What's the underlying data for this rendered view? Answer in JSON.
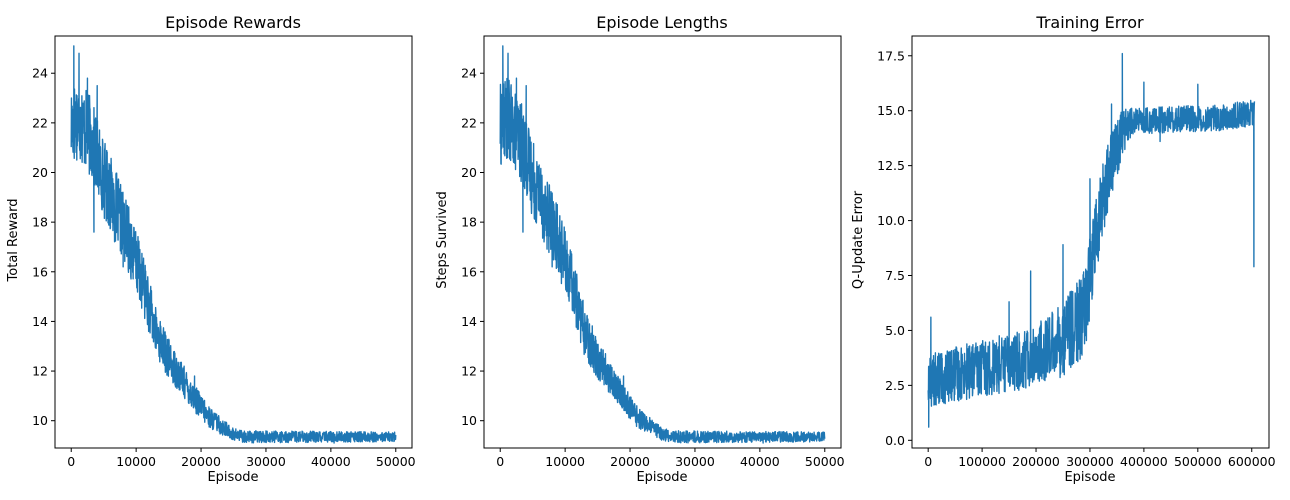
{
  "chart_data": [
    {
      "type": "line",
      "title": "Episode Rewards",
      "xlabel": "Episode",
      "ylabel": "Total Reward",
      "xlim": [
        -2500,
        52500
      ],
      "ylim": [
        8.9,
        25.5
      ],
      "xticks": [
        0,
        10000,
        20000,
        30000,
        40000,
        50000
      ],
      "yticks": [
        10,
        12,
        14,
        16,
        18,
        20,
        22,
        24
      ],
      "color": "#1f77b4",
      "grid": false,
      "trend": [
        [
          0,
          21.9
        ],
        [
          1000,
          22.2
        ],
        [
          3000,
          21.4
        ],
        [
          5000,
          19.8
        ],
        [
          7000,
          18.5
        ],
        [
          9000,
          17.2
        ],
        [
          11000,
          15.6
        ],
        [
          13000,
          13.6
        ],
        [
          15000,
          12.5
        ],
        [
          17000,
          11.7
        ],
        [
          19000,
          10.9
        ],
        [
          21000,
          10.2
        ],
        [
          23000,
          9.8
        ],
        [
          25000,
          9.45
        ],
        [
          27000,
          9.35
        ],
        [
          30000,
          9.35
        ],
        [
          40000,
          9.35
        ],
        [
          50000,
          9.35
        ]
      ],
      "noise": [
        [
          0,
          1.7
        ],
        [
          5000,
          1.6
        ],
        [
          10000,
          1.3
        ],
        [
          15000,
          0.8
        ],
        [
          20000,
          0.5
        ],
        [
          25000,
          0.25
        ],
        [
          50000,
          0.2
        ]
      ],
      "highlights": [
        [
          400,
          25.1
        ],
        [
          1200,
          24.8
        ],
        [
          2500,
          23.8
        ],
        [
          4000,
          23.5
        ],
        [
          6000,
          20.3
        ],
        [
          3500,
          17.6
        ],
        [
          8000,
          16.2
        ],
        [
          14000,
          13.2
        ],
        [
          19000,
          11.8
        ],
        [
          40500,
          9.1
        ]
      ]
    },
    {
      "type": "line",
      "title": "Episode Lengths",
      "xlabel": "Episode",
      "ylabel": "Steps Survived",
      "xlim": [
        -2500,
        52500
      ],
      "ylim": [
        8.9,
        25.5
      ],
      "xticks": [
        0,
        10000,
        20000,
        30000,
        40000,
        50000
      ],
      "yticks": [
        10,
        12,
        14,
        16,
        18,
        20,
        22,
        24
      ],
      "color": "#1f77b4",
      "grid": false,
      "trend": [
        [
          0,
          21.9
        ],
        [
          1000,
          22.2
        ],
        [
          3000,
          21.4
        ],
        [
          5000,
          19.8
        ],
        [
          7000,
          18.5
        ],
        [
          9000,
          17.2
        ],
        [
          11000,
          15.6
        ],
        [
          13000,
          13.6
        ],
        [
          15000,
          12.5
        ],
        [
          17000,
          11.7
        ],
        [
          19000,
          10.9
        ],
        [
          21000,
          10.2
        ],
        [
          23000,
          9.8
        ],
        [
          25000,
          9.45
        ],
        [
          27000,
          9.35
        ],
        [
          30000,
          9.35
        ],
        [
          40000,
          9.35
        ],
        [
          50000,
          9.35
        ]
      ],
      "noise": [
        [
          0,
          1.7
        ],
        [
          5000,
          1.6
        ],
        [
          10000,
          1.3
        ],
        [
          15000,
          0.8
        ],
        [
          20000,
          0.5
        ],
        [
          25000,
          0.25
        ],
        [
          50000,
          0.2
        ]
      ],
      "highlights": [
        [
          400,
          25.1
        ],
        [
          1200,
          24.8
        ],
        [
          2500,
          23.8
        ],
        [
          4000,
          23.5
        ],
        [
          6000,
          20.3
        ],
        [
          3500,
          17.6
        ],
        [
          8000,
          16.2
        ],
        [
          14000,
          13.2
        ],
        [
          19000,
          11.8
        ],
        [
          40500,
          9.1
        ]
      ]
    },
    {
      "type": "line",
      "title": "Training Error",
      "xlabel": "Episode",
      "ylabel": "Q-Update Error",
      "xlim": [
        -30000,
        632000
      ],
      "ylim": [
        -0.35,
        18.4
      ],
      "xticks": [
        0,
        100000,
        200000,
        300000,
        400000,
        500000,
        600000
      ],
      "yticks": [
        0.0,
        2.5,
        5.0,
        7.5,
        10.0,
        12.5,
        15.0,
        17.5
      ],
      "color": "#1f77b4",
      "grid": false,
      "trend": [
        [
          0,
          2.7
        ],
        [
          50000,
          3.0
        ],
        [
          100000,
          3.3
        ],
        [
          150000,
          3.5
        ],
        [
          200000,
          3.9
        ],
        [
          250000,
          4.6
        ],
        [
          290000,
          5.8
        ],
        [
          300000,
          7.5
        ],
        [
          320000,
          10.5
        ],
        [
          340000,
          12.6
        ],
        [
          360000,
          14.0
        ],
        [
          380000,
          14.5
        ],
        [
          450000,
          14.6
        ],
        [
          550000,
          14.7
        ],
        [
          605000,
          14.9
        ]
      ],
      "noise": [
        [
          0,
          1.2
        ],
        [
          200000,
          1.4
        ],
        [
          300000,
          2.0
        ],
        [
          360000,
          1.2
        ],
        [
          380000,
          0.6
        ],
        [
          605000,
          0.6
        ]
      ],
      "highlights": [
        [
          1000,
          0.6
        ],
        [
          5000,
          5.6
        ],
        [
          150000,
          6.3
        ],
        [
          190000,
          7.7
        ],
        [
          250000,
          8.9
        ],
        [
          300000,
          11.9
        ],
        [
          340000,
          15.3
        ],
        [
          360000,
          17.6
        ],
        [
          400000,
          16.3
        ],
        [
          500000,
          16.2
        ],
        [
          430000,
          13.6
        ],
        [
          604000,
          7.9
        ]
      ]
    }
  ]
}
